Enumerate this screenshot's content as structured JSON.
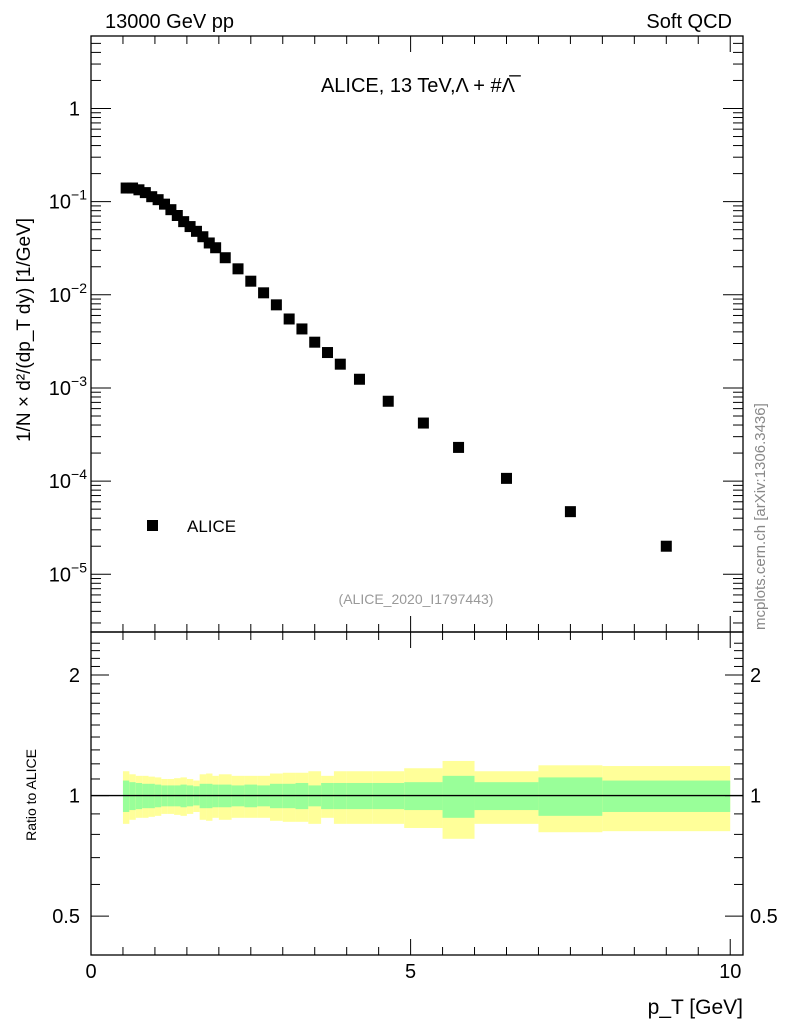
{
  "header": {
    "left": "13000 GeV pp",
    "right": "Soft QCD"
  },
  "side_label": "mcplots.cern.ch [arXiv:1306.3436]",
  "analysis_id": "(ALICE_2020_I1797443)",
  "chart_data": [
    {
      "type": "scatter",
      "title": "ALICE, 13 TeV,Λ + #Λ̅",
      "xlabel": "p_T [GeV]",
      "ylabel": "1/N × d²/(dp_T dy) [1/GeV]",
      "yscale": "log",
      "xlim": [
        0,
        10.2
      ],
      "ylim": [
        2.4e-06,
        6
      ],
      "yticks": [
        {
          "v": 1,
          "label": "1"
        },
        {
          "v": 0.1,
          "label": "10",
          "exp": "−1"
        },
        {
          "v": 0.01,
          "label": "10",
          "exp": "−2"
        },
        {
          "v": 0.001,
          "label": "10",
          "exp": "−3"
        },
        {
          "v": 0.0001,
          "label": "10",
          "exp": "−4"
        },
        {
          "v": 1e-05,
          "label": "10",
          "exp": "−5"
        }
      ],
      "legend": {
        "entries": [
          "ALICE"
        ],
        "placement": "bottom-left"
      },
      "series": [
        {
          "name": "ALICE",
          "x": [
            0.55,
            0.65,
            0.75,
            0.85,
            0.95,
            1.05,
            1.15,
            1.25,
            1.35,
            1.45,
            1.55,
            1.65,
            1.75,
            1.85,
            1.95,
            2.1,
            2.3,
            2.5,
            2.7,
            2.9,
            3.1,
            3.3,
            3.5,
            3.7,
            3.9,
            4.2,
            4.65,
            5.2,
            5.75,
            6.5,
            7.5,
            9.0
          ],
          "y": [
            0.14,
            0.14,
            0.134,
            0.125,
            0.113,
            0.105,
            0.094,
            0.082,
            0.071,
            0.061,
            0.054,
            0.048,
            0.042,
            0.036,
            0.032,
            0.025,
            0.019,
            0.014,
            0.0105,
            0.0078,
            0.0055,
            0.0043,
            0.0031,
            0.0024,
            0.0018,
            0.00124,
            0.00072,
            0.00042,
            0.00023,
            0.000107,
            4.7e-05,
            2e-05
          ]
        }
      ]
    },
    {
      "type": "area",
      "ylabel": "Ratio to ALICE",
      "xlabel": "p_T [GeV]",
      "yscale": "log",
      "xlim": [
        0,
        10.2
      ],
      "ylim": [
        0.4,
        2.56
      ],
      "xticks": [
        {
          "v": 0,
          "label": "0"
        },
        {
          "v": 5,
          "label": "5"
        },
        {
          "v": 10,
          "label": "10"
        }
      ],
      "yticks": [
        {
          "v": 0.5,
          "label": "0.5"
        },
        {
          "v": 1,
          "label": "1"
        },
        {
          "v": 2,
          "label": "2"
        }
      ],
      "bin_edges": [
        0.5,
        0.6,
        0.7,
        0.8,
        0.9,
        1.0,
        1.1,
        1.2,
        1.3,
        1.4,
        1.5,
        1.6,
        1.7,
        1.8,
        1.9,
        2.0,
        2.2,
        2.4,
        2.6,
        2.8,
        3.0,
        3.2,
        3.4,
        3.6,
        3.8,
        4.0,
        4.4,
        4.9,
        5.5,
        6.0,
        7.0,
        8.0,
        10.0
      ],
      "total_unc": [
        0.15,
        0.13,
        0.12,
        0.12,
        0.115,
        0.11,
        0.1,
        0.1,
        0.105,
        0.11,
        0.1,
        0.09,
        0.13,
        0.135,
        0.12,
        0.13,
        0.12,
        0.12,
        0.12,
        0.135,
        0.14,
        0.14,
        0.15,
        0.12,
        0.15,
        0.15,
        0.15,
        0.17,
        0.22,
        0.15,
        0.19,
        0.185
      ],
      "stat_unc": [
        0.09,
        0.08,
        0.075,
        0.07,
        0.07,
        0.065,
        0.06,
        0.06,
        0.06,
        0.065,
        0.06,
        0.055,
        0.07,
        0.07,
        0.065,
        0.065,
        0.06,
        0.065,
        0.06,
        0.07,
        0.07,
        0.075,
        0.06,
        0.075,
        0.075,
        0.075,
        0.075,
        0.08,
        0.12,
        0.08,
        0.11,
        0.09
      ],
      "reference_line": 1,
      "colors": {
        "total": "#ffff99",
        "stat": "#99ff99"
      }
    }
  ]
}
